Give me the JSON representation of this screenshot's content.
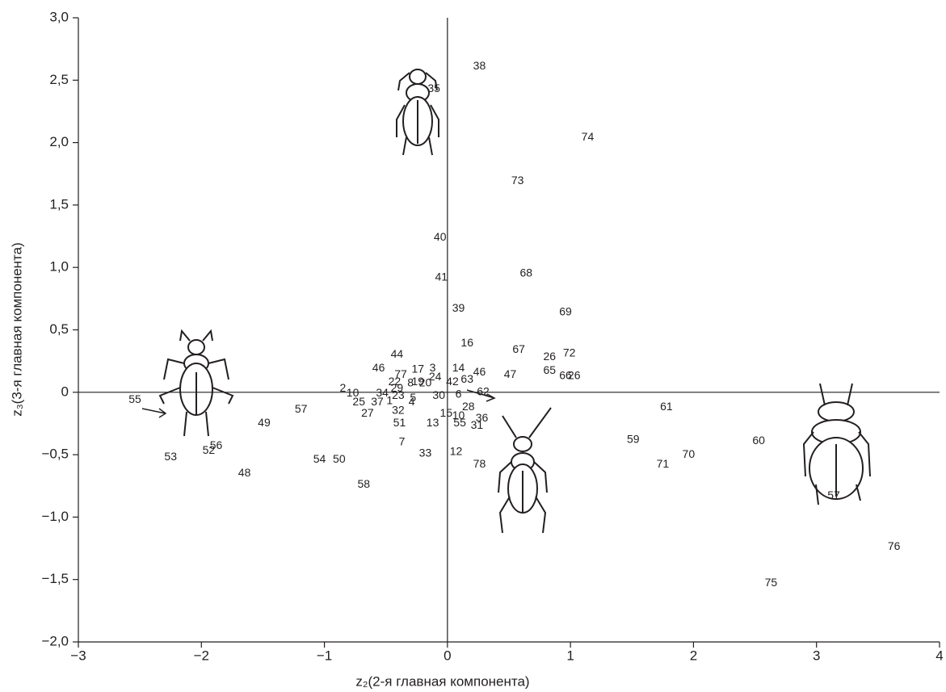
{
  "chart_data": {
    "type": "scatter",
    "xlabel": "z₂(2-я главная компонента)",
    "ylabel": "z₃(3-я главная компонента)",
    "xlim": [
      -3,
      4
    ],
    "ylim": [
      -2,
      3
    ],
    "xticks": [
      {
        "value": -3,
        "label": "−3"
      },
      {
        "value": -2,
        "label": "−2"
      },
      {
        "value": -1,
        "label": "−1"
      },
      0,
      1,
      2,
      3,
      4
    ],
    "yticks": [
      {
        "value": 3,
        "label": "3,0"
      },
      {
        "value": 2.5,
        "label": "2,5"
      },
      {
        "value": 2,
        "label": "2,0"
      },
      {
        "value": 1.5,
        "label": "1,5"
      },
      {
        "value": 1,
        "label": "1,0"
      },
      {
        "value": 0.5,
        "label": "0,5"
      },
      0,
      {
        "value": -0.5,
        "label": "−0,5"
      },
      {
        "value": -1,
        "label": "−1,0"
      },
      {
        "value": -1.5,
        "label": "−1,5"
      },
      {
        "value": -2,
        "label": "−2,0"
      }
    ],
    "color": "#231f20",
    "zero_lines": true,
    "points": {
      "labels": [
        "38",
        "35",
        "74",
        "73",
        "40",
        "68",
        "41",
        "39",
        "69",
        "16",
        "67",
        "44",
        "72",
        "26",
        "46",
        "17",
        "3",
        "14",
        "77",
        "46",
        "65",
        "47",
        "66",
        "26",
        "24",
        "42",
        "63",
        "22",
        "8",
        "19",
        "20",
        "2",
        "10",
        "34",
        "29",
        "23",
        "5",
        "30",
        "6",
        "62",
        "25",
        "37",
        "1",
        "4",
        "28",
        "27",
        "32",
        "15",
        "10",
        "36",
        "55",
        "31",
        "51",
        "13",
        "7",
        "12",
        "33",
        "78",
        "58",
        "57",
        "49",
        "55",
        "53",
        "52",
        "56",
        "48",
        "54",
        "50",
        "61",
        "59",
        "70",
        "71",
        "60",
        "57",
        "76",
        "75"
      ],
      "x": [
        0.26,
        -0.11,
        1.14,
        0.57,
        -0.06,
        0.64,
        -0.05,
        0.09,
        0.96,
        0.16,
        0.58,
        -0.41,
        0.99,
        0.83,
        -0.56,
        -0.24,
        -0.12,
        0.09,
        -0.38,
        0.26,
        0.83,
        0.51,
        0.96,
        1.03,
        -0.1,
        0.04,
        0.16,
        -0.43,
        -0.3,
        -0.24,
        -0.18,
        -0.85,
        -0.77,
        -0.53,
        -0.41,
        -0.4,
        -0.28,
        -0.07,
        0.09,
        0.29,
        -0.72,
        -0.57,
        -0.47,
        -0.29,
        0.17,
        -0.65,
        -0.4,
        -0.01,
        0.09,
        0.28,
        0.1,
        0.24,
        -0.39,
        -0.12,
        -0.37,
        0.07,
        -0.18,
        0.26,
        -0.68,
        -1.19,
        -1.49,
        -2.54,
        -2.25,
        -1.94,
        -1.88,
        -1.65,
        -1.04,
        -0.88,
        1.78,
        1.51,
        1.96,
        1.75,
        2.53,
        3.14,
        3.63,
        2.63
      ],
      "y": [
        2.61,
        2.43,
        2.04,
        1.69,
        1.24,
        0.95,
        0.92,
        0.67,
        0.64,
        0.39,
        0.34,
        0.3,
        0.31,
        0.28,
        0.19,
        0.18,
        0.19,
        0.19,
        0.14,
        0.16,
        0.17,
        0.14,
        0.13,
        0.13,
        0.12,
        0.08,
        0.1,
        0.08,
        0.07,
        0.08,
        0.07,
        0.03,
        -0.01,
        -0.01,
        0.03,
        -0.03,
        -0.05,
        -0.03,
        -0.02,
        0,
        -0.08,
        -0.08,
        -0.07,
        -0.08,
        -0.12,
        -0.17,
        -0.15,
        -0.17,
        -0.19,
        -0.21,
        -0.25,
        -0.27,
        -0.25,
        -0.25,
        -0.4,
        -0.48,
        -0.49,
        -0.58,
        -0.74,
        -0.14,
        -0.25,
        -0.06,
        -0.52,
        -0.47,
        -0.43,
        -0.65,
        -0.54,
        -0.54,
        -0.12,
        -0.38,
        -0.5,
        -0.58,
        -0.39,
        -0.83,
        -1.24,
        -1.53
      ]
    }
  }
}
